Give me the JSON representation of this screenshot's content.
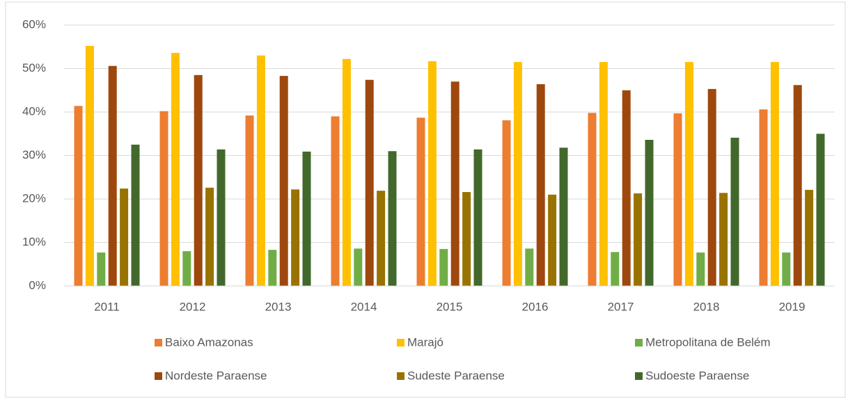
{
  "chart_data": {
    "type": "bar",
    "categories": [
      "2011",
      "2012",
      "2013",
      "2014",
      "2015",
      "2016",
      "2017",
      "2018",
      "2019"
    ],
    "series": [
      {
        "name": "Baixo Amazonas",
        "color": "#ed7d31",
        "values": [
          41.4,
          40.2,
          39.2,
          39.0,
          38.7,
          38.1,
          39.8,
          39.7,
          40.6
        ]
      },
      {
        "name": "Marajó",
        "color": "#ffc000",
        "values": [
          55.2,
          53.6,
          53.0,
          52.2,
          51.7,
          51.5,
          51.5,
          51.5,
          51.5
        ]
      },
      {
        "name": "Metropolitana de Belém",
        "color": "#70ad47",
        "values": [
          7.7,
          8.0,
          8.3,
          8.6,
          8.5,
          8.6,
          7.8,
          7.7,
          7.7
        ]
      },
      {
        "name": "Nordeste Paraense",
        "color": "#9e480e",
        "values": [
          50.6,
          48.5,
          48.3,
          47.4,
          47.0,
          46.4,
          45.0,
          45.3,
          46.2
        ]
      },
      {
        "name": "Sudeste Paraense",
        "color": "#997300",
        "values": [
          22.4,
          22.6,
          22.2,
          21.9,
          21.6,
          21.0,
          21.3,
          21.4,
          22.1
        ]
      },
      {
        "name": "Sudoeste Paraense",
        "color": "#43682b",
        "values": [
          32.5,
          31.4,
          30.9,
          31.0,
          31.4,
          31.8,
          33.6,
          34.1,
          35.0
        ]
      }
    ],
    "ylim": [
      0,
      60
    ],
    "yticks": [
      {
        "value": 0,
        "label": "0%"
      },
      {
        "value": 10,
        "label": "10%"
      },
      {
        "value": 20,
        "label": "20%"
      },
      {
        "value": 30,
        "label": "30%"
      },
      {
        "value": 40,
        "label": "40%"
      },
      {
        "value": 50,
        "label": "50%"
      },
      {
        "value": 60,
        "label": "60%"
      }
    ],
    "grid": true,
    "legend": "bottom"
  }
}
